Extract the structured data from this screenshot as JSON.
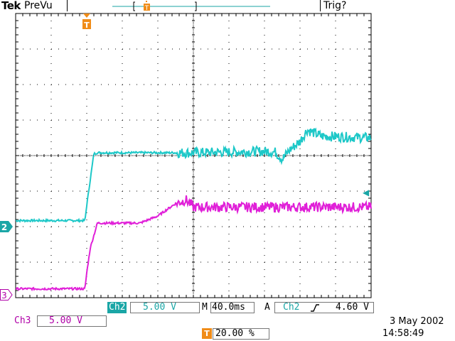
{
  "header": {
    "brand": "Tek",
    "mode": "PreVu",
    "trigger_status": "Trig?"
  },
  "colors": {
    "ch2": "#1ec8c8",
    "ch3": "#e020d8",
    "trigger_marker": "#f08c18",
    "grid": "#000000",
    "ch2_label_bg": "#1aa6a6",
    "ch3_label": "#b000a8"
  },
  "markers": {
    "ch2_ground": "2",
    "ch3_ground": "3",
    "trigger_position": "T",
    "trigger_level_arrow": "◀"
  },
  "status_bar": {
    "ch2_label": "Ch2",
    "ch2_scale": "5.00 V",
    "timebase_prefix": "M",
    "timebase": "40.0ms",
    "acq_mode": "A",
    "trigger_source": "Ch2",
    "trigger_slope_icon": "rising-edge",
    "trigger_level": "4.60 V",
    "ch3_label": "Ch3",
    "ch3_scale": "5.00 V",
    "trigger_position_marker": "T",
    "trigger_position_percent": "20.00 %",
    "date": "3 May 2002",
    "time": "14:58:49"
  },
  "chart_data": {
    "type": "line",
    "xlabel": "",
    "ylabel": "",
    "x_divisions": 10,
    "y_divisions": 8,
    "grid": true,
    "series": [
      {
        "name": "Ch2",
        "color": "#1ec8c8",
        "points": [
          [
            0.0,
            -1.83
          ],
          [
            1.95,
            -1.83
          ],
          [
            2.0,
            -1.4
          ],
          [
            2.2,
            0.05
          ],
          [
            2.3,
            0.08
          ],
          [
            5.0,
            0.08
          ],
          [
            7.0,
            0.12
          ],
          [
            7.3,
            0.1
          ],
          [
            7.5,
            -0.1
          ],
          [
            7.7,
            0.15
          ],
          [
            8.0,
            0.4
          ],
          [
            8.2,
            0.72
          ],
          [
            8.6,
            0.55
          ],
          [
            10.0,
            0.5
          ]
        ]
      },
      {
        "name": "Ch3",
        "color": "#e020d8",
        "points": [
          [
            0.0,
            -3.75
          ],
          [
            1.95,
            -3.75
          ],
          [
            2.0,
            -3.3
          ],
          [
            2.1,
            -2.6
          ],
          [
            2.3,
            -1.9
          ],
          [
            3.5,
            -1.9
          ],
          [
            4.0,
            -1.7
          ],
          [
            4.5,
            -1.35
          ],
          [
            4.8,
            -1.25
          ],
          [
            5.0,
            -1.45
          ],
          [
            10.0,
            -1.45
          ]
        ]
      }
    ]
  }
}
